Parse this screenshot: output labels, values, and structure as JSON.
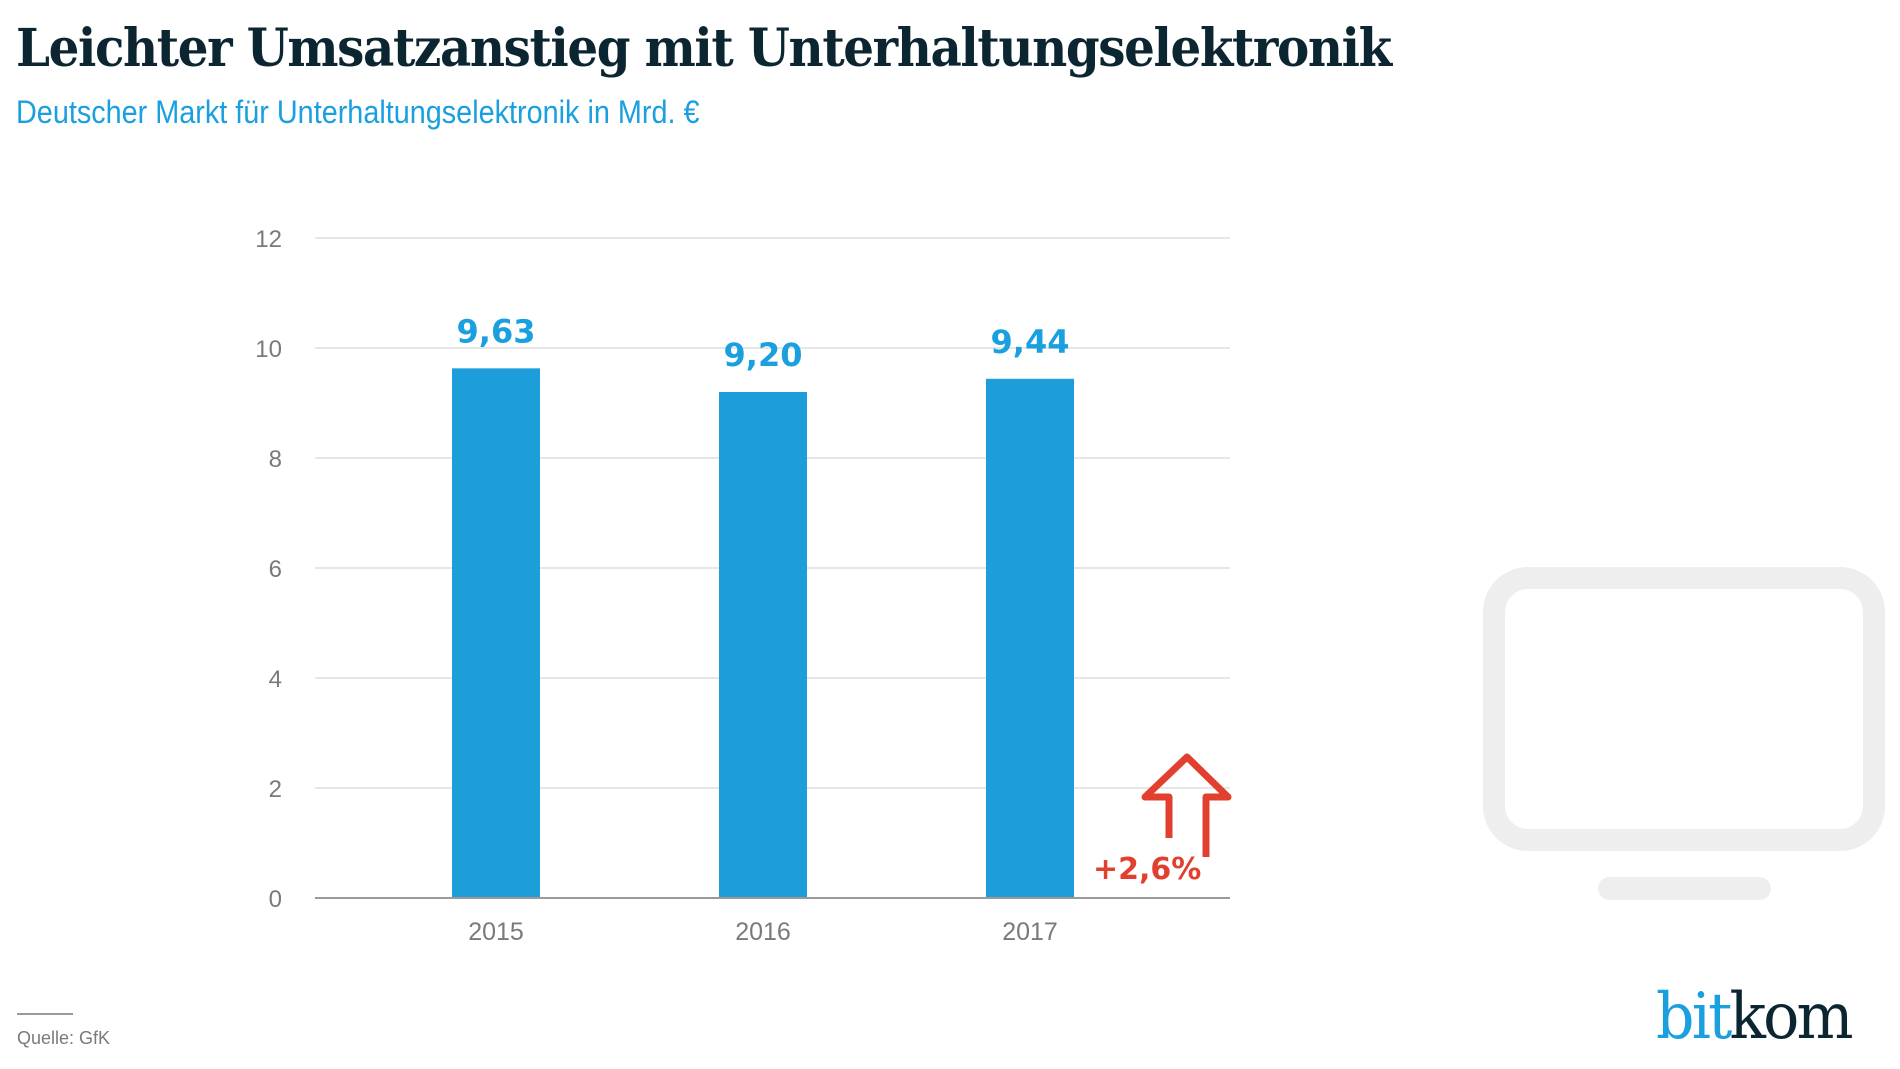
{
  "header": {
    "title": "Leichter Umsatzanstieg mit Unterhaltungselektronik",
    "subtitle": "Deutscher Markt für Unterhaltungselektronik in Mrd. €"
  },
  "chart_data": {
    "type": "bar",
    "title": "Leichter Umsatzanstieg mit Unterhaltungselektronik",
    "subtitle": "Deutscher Markt für Unterhaltungselektronik in Mrd. €",
    "categories": [
      "2015",
      "2016",
      "2017"
    ],
    "values": [
      9.63,
      9.2,
      9.44
    ],
    "data_labels": [
      "9,63",
      "9,20",
      "9,44"
    ],
    "xlabel": "",
    "ylabel": "",
    "ylim": [
      0,
      12
    ],
    "yticks": [
      0,
      2,
      4,
      6,
      8,
      10,
      12
    ],
    "ytick_labels": [
      "0",
      "2",
      "4",
      "6",
      "8",
      "10",
      "12"
    ],
    "grid": true,
    "annotation": {
      "text": "+2,6%",
      "icon": "arrow-up-icon",
      "meaning": "change 2016 to 2017"
    },
    "colors": {
      "bar": "#1d9dd9",
      "data_label": "#1a9fdf",
      "annotation": "#e2402f",
      "grid": "#dddddd",
      "axis": "#9a9a9a",
      "tick_label": "#7a7a7a"
    }
  },
  "decoration": {
    "icon": "monitor-icon",
    "color": "#eeeeee"
  },
  "footer": {
    "source": "Quelle: GfK",
    "logo_part1": "bit",
    "logo_part2": "kom"
  }
}
